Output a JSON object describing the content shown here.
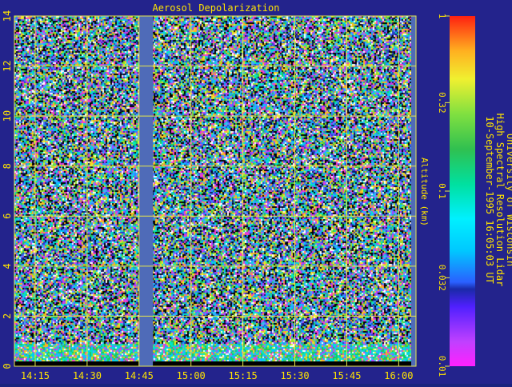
{
  "chart_data": {
    "type": "heatmap",
    "title": "Aerosol Depolarization",
    "ylabel": "Altitude (km)",
    "xlabel": "",
    "x_ticks": [
      "14:15",
      "14:30",
      "14:45",
      "15:00",
      "15:15",
      "15:30",
      "15:45",
      "16:00"
    ],
    "y_ticks": [
      "0",
      "2",
      "4",
      "6",
      "8",
      "10",
      "12",
      "14"
    ],
    "ylim": [
      0,
      14
    ],
    "xlim": [
      "14:09",
      "16:05"
    ],
    "grid": true,
    "data_gap": [
      "14:45",
      "14:49"
    ],
    "colorbar": {
      "scale": "log",
      "range": [
        0.01,
        1
      ],
      "tick_labels": [
        "1",
        "0.32",
        "0.1",
        "0.032",
        "0.01"
      ],
      "tick_values": [
        1,
        0.32,
        0.1,
        0.032,
        0.01
      ]
    },
    "side_caption": [
      "University of Wisconsin",
      "High Spectral Resolution Lidar",
      "10-September-1995 16:05:03 UT"
    ]
  },
  "colors": {
    "background": "#23238c",
    "grid": "#e8e84a",
    "text": "#ffe400",
    "gap": "#4f6bb8"
  }
}
